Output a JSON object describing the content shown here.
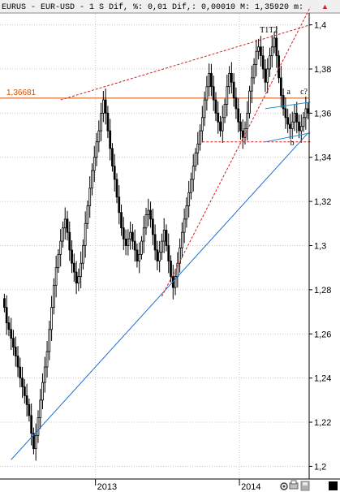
{
  "header": {
    "text": "EURUS - EUR-USD -  1 S Dif, %: 0,01 Dif,: 0,00010 M: 1,35920 m:",
    "arrow": "▲"
  },
  "chart_data": {
    "type": "candlestick",
    "title": "EURUS - EUR-USD - 1 S",
    "ylim": [
      1.195,
      1.405
    ],
    "y_ticks": [
      "1,4",
      "1,38",
      "1,36",
      "1,34",
      "1,32",
      "1,3",
      "1,28",
      "1,26",
      "1,24",
      "1,22",
      "1,2"
    ],
    "y_tick_values": [
      1.4,
      1.38,
      1.36,
      1.34,
      1.32,
      1.3,
      1.28,
      1.26,
      1.24,
      1.22,
      1.2
    ],
    "x_labels": [
      {
        "label": "2013",
        "week": 41
      },
      {
        "label": "2014",
        "week": 105
      }
    ],
    "weeks": 136,
    "grid": true,
    "closes": [
      1.272,
      1.265,
      1.262,
      1.258,
      1.254,
      1.25,
      1.245,
      1.24,
      1.236,
      1.232,
      1.228,
      1.223,
      1.215,
      1.208,
      1.214,
      1.222,
      1.23,
      1.238,
      1.245,
      1.252,
      1.262,
      1.272,
      1.282,
      1.29,
      1.296,
      1.302,
      1.308,
      1.312,
      1.306,
      1.298,
      1.292,
      1.288,
      1.283,
      1.286,
      1.292,
      1.3,
      1.31,
      1.318,
      1.326,
      1.334,
      1.34,
      1.347,
      1.352,
      1.36,
      1.366,
      1.36,
      1.352,
      1.344,
      1.336,
      1.33,
      1.322,
      1.315,
      1.308,
      1.303,
      1.3,
      1.303,
      1.306,
      1.302,
      1.298,
      1.293,
      1.296,
      1.302,
      1.308,
      1.314,
      1.316,
      1.312,
      1.305,
      1.298,
      1.293,
      1.297,
      1.302,
      1.307,
      1.3,
      1.293,
      1.286,
      1.281,
      1.286,
      1.292,
      1.299,
      1.306,
      1.312,
      1.318,
      1.324,
      1.33,
      1.336,
      1.342,
      1.346,
      1.352,
      1.358,
      1.366,
      1.372,
      1.378,
      1.372,
      1.366,
      1.36,
      1.356,
      1.352,
      1.358,
      1.364,
      1.372,
      1.378,
      1.374,
      1.367,
      1.362,
      1.356,
      1.352,
      1.349,
      1.353,
      1.36,
      1.37,
      1.376,
      1.382,
      1.388,
      1.39,
      1.386,
      1.38,
      1.374,
      1.38,
      1.386,
      1.39,
      1.394,
      1.386,
      1.376,
      1.368,
      1.362,
      1.358,
      1.355,
      1.353,
      1.356,
      1.36,
      1.356,
      1.352,
      1.354,
      1.358,
      1.362,
      1.36
    ],
    "level": {
      "label": "1,36681",
      "value": 1.36681,
      "color": "#d05000"
    },
    "trendlines": [
      {
        "name": "long-term-support",
        "color": "#1f6fd0",
        "style": "solid",
        "from": [
          3,
          1.203
        ],
        "to": [
          135,
          1.351
        ]
      },
      {
        "name": "short-term-support",
        "color": "#d02020",
        "style": "dashed",
        "from": [
          70,
          1.277
        ],
        "to": [
          136,
          1.408
        ]
      },
      {
        "name": "resistance",
        "color": "#d02020",
        "style": "dashed",
        "from": [
          25,
          1.366
        ],
        "to": [
          136,
          1.4
        ]
      },
      {
        "name": "base-support",
        "color": "#d02020",
        "style": "dashed",
        "from": [
          88,
          1.347
        ],
        "to": [
          136,
          1.347
        ]
      },
      {
        "name": "channel-upper",
        "color": "#2090d0",
        "style": "solid",
        "from": [
          116,
          1.362
        ],
        "to": [
          136,
          1.365
        ]
      },
      {
        "name": "channel-lower",
        "color": "#2090d0",
        "style": "solid",
        "from": [
          116,
          1.347
        ],
        "to": [
          136,
          1.351
        ]
      }
    ],
    "annotations": [
      {
        "text": "T1T2",
        "x": 115,
        "y": 1.3965
      },
      {
        "text": "a",
        "x": 127,
        "y": 1.3685
      },
      {
        "text": "c?",
        "x": 133,
        "y": 1.3685
      },
      {
        "text": "b",
        "x": 128.5,
        "y": 1.3455
      }
    ]
  },
  "status": {
    "buttons": [
      "gear-icon",
      "print-icon",
      "disk-icon",
      "stop-icon"
    ]
  }
}
